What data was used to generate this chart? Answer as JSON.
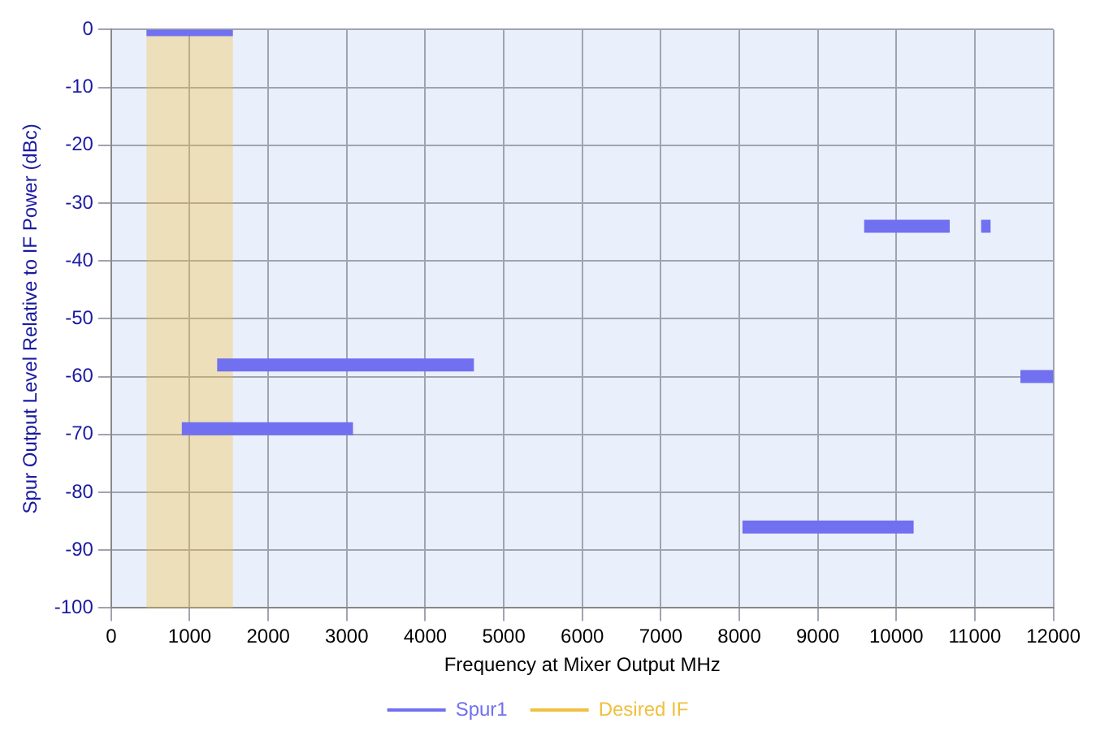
{
  "chart_data": {
    "type": "line",
    "xlabel": "Frequency at Mixer Output MHz",
    "ylabel": "Spur Output Level Relative to IF Power (dBc)",
    "series": [
      {
        "name": "Spur1",
        "color": "#7070f0",
        "x": [
          450,
          1550,
          null,
          1350,
          4620,
          null,
          900,
          3080,
          null,
          9590,
          10680,
          null,
          11080,
          11200,
          null,
          11580,
          12000,
          null,
          8040,
          10220
        ],
        "values": [
          0,
          0,
          null,
          -58,
          -58,
          null,
          -69,
          -69,
          null,
          -34,
          -34,
          null,
          -34,
          -34,
          null,
          -60,
          -60,
          null,
          -86,
          -86
        ]
      }
    ],
    "bands": [
      {
        "axis": "x",
        "from": 450,
        "to": 1550,
        "label": "Desired IF",
        "color": "#f0c040"
      }
    ],
    "xlim": [
      0,
      12000
    ],
    "xticks": [
      0,
      1000,
      2000,
      3000,
      4000,
      5000,
      6000,
      7000,
      8000,
      9000,
      10000,
      11000,
      12000
    ],
    "ylim": [
      -100,
      0
    ],
    "yticks": [
      -100,
      -90,
      -80,
      -70,
      -60,
      -50,
      -40,
      -30,
      -20,
      -10,
      0
    ],
    "grid": true,
    "legend": "bottom",
    "marker": "none",
    "line_style": "solid"
  }
}
